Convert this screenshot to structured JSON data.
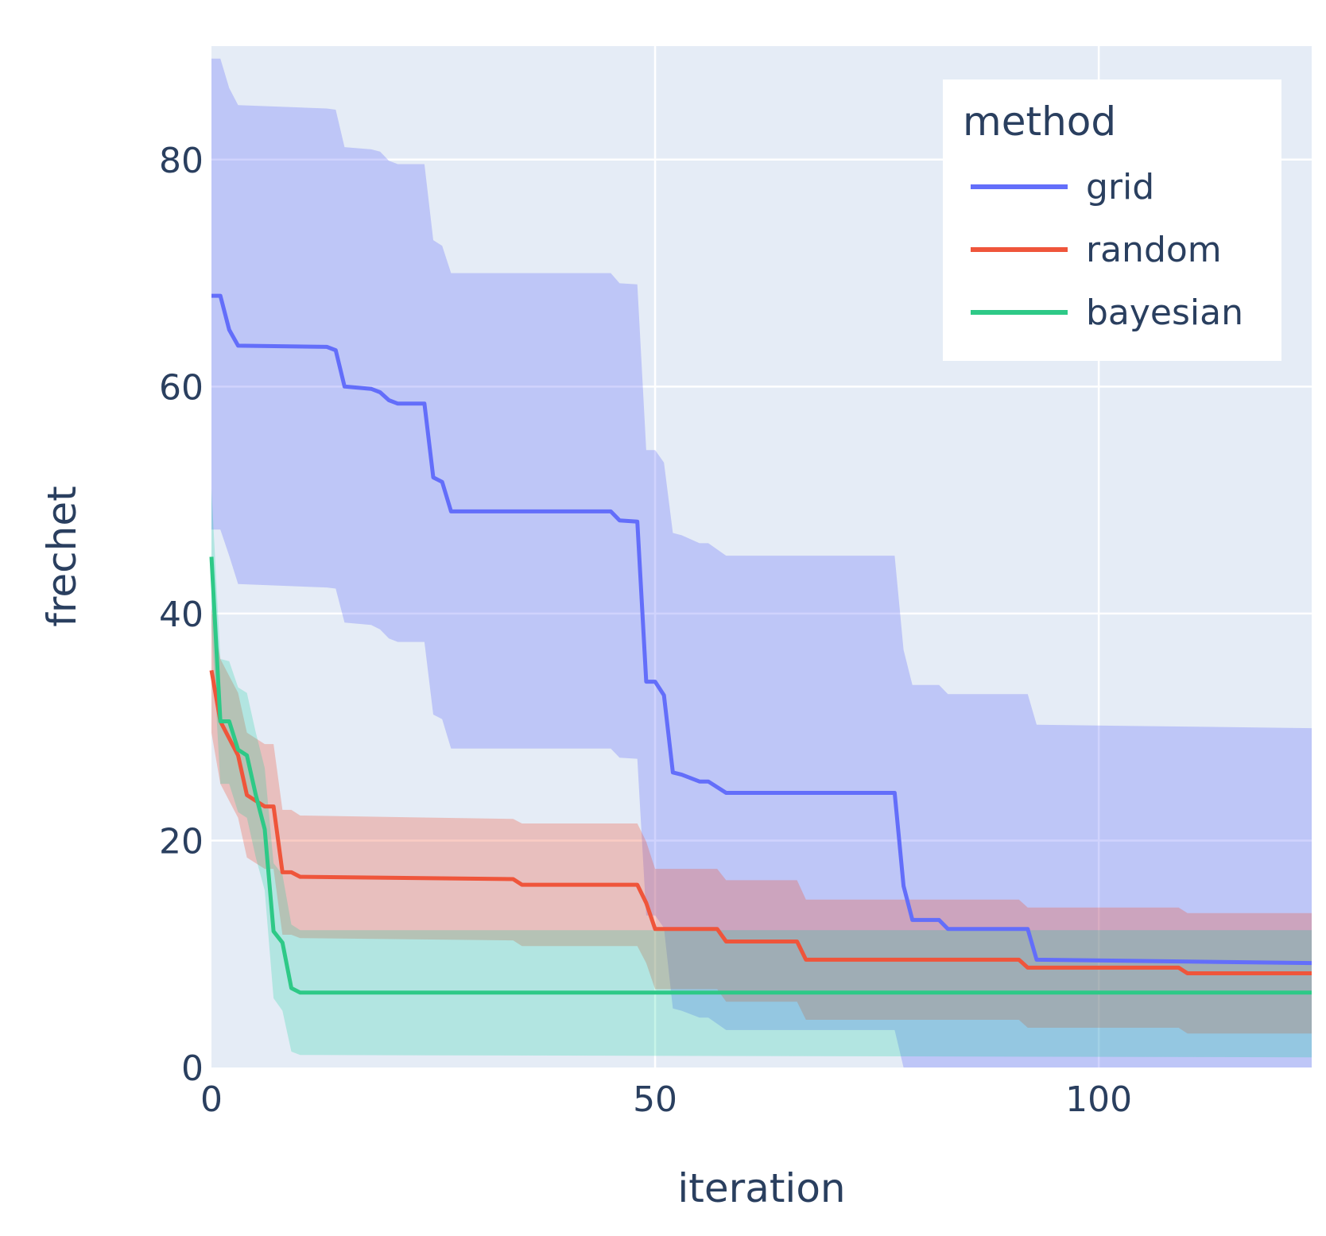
{
  "chart_data": {
    "type": "line",
    "xlabel": "iteration",
    "ylabel": "frechet",
    "xlim": [
      0,
      124
    ],
    "ylim": [
      0,
      90
    ],
    "x_ticks": [
      0,
      50,
      100
    ],
    "y_ticks": [
      0,
      20,
      40,
      60,
      80
    ],
    "grid": true,
    "plot_bg": "#e5ecf6",
    "grid_color": "#ffffff",
    "legend": {
      "title": "method",
      "position": "top-right"
    },
    "series": [
      {
        "name": "grid",
        "color": "#636efa",
        "band_fill": "rgba(99,110,250,0.3)",
        "x": [
          0,
          1,
          2,
          3,
          13,
          14,
          15,
          18,
          19,
          20,
          21,
          24,
          25,
          26,
          27,
          45,
          46,
          48,
          49,
          50,
          51,
          52,
          53,
          55,
          56,
          58,
          59,
          77,
          78,
          79,
          82,
          83,
          92,
          93,
          124
        ],
        "y": [
          68,
          68,
          65,
          63.6,
          63.5,
          63.2,
          60,
          59.8,
          59.5,
          58.8,
          58.5,
          58.5,
          52,
          51.6,
          49,
          49,
          48.2,
          48.1,
          34,
          34,
          32.8,
          26,
          25.8,
          25.2,
          25.2,
          24.2,
          24.2,
          24.2,
          16,
          13,
          13,
          12.2,
          12.2,
          9.5,
          9.2
        ],
        "upper": [
          88.9,
          88.9,
          86.3,
          84.8,
          84.5,
          84.4,
          81.1,
          80.9,
          80.7,
          79.9,
          79.6,
          79.6,
          72.9,
          72.4,
          70,
          70,
          69.1,
          69,
          54.4,
          54.4,
          53.3,
          47.1,
          46.9,
          46.2,
          46.2,
          45.1,
          45.1,
          45.1,
          36.8,
          33.7,
          33.7,
          32.9,
          32.9,
          30.2,
          29.9
        ],
        "lower": [
          47.4,
          47.4,
          45.1,
          42.6,
          42.3,
          42.2,
          39.2,
          39.0,
          38.6,
          37.8,
          37.5,
          37.5,
          31.1,
          30.7,
          28.1,
          28.1,
          27.3,
          27.2,
          13.4,
          13.4,
          12.3,
          5.2,
          5.0,
          4.4,
          4.4,
          3.3,
          3.3,
          3.3,
          0,
          0,
          0,
          0,
          0,
          0,
          0
        ]
      },
      {
        "name": "random",
        "color": "#ef553b",
        "band_fill": "rgba(239,85,59,0.3)",
        "x": [
          0,
          1,
          2,
          3,
          4,
          6,
          7,
          8,
          9,
          10,
          34,
          35,
          48,
          49,
          50,
          57,
          58,
          66,
          67,
          91,
          92,
          109,
          110,
          124
        ],
        "y": [
          35,
          30.5,
          29,
          27.5,
          24,
          23,
          23,
          17.2,
          17.2,
          16.8,
          16.6,
          16.1,
          16.1,
          14.5,
          12.2,
          12.2,
          11.1,
          11.1,
          9.5,
          9.5,
          8.8,
          8.8,
          8.3,
          8.3
        ],
        "upper": [
          40.5,
          36.0,
          34.5,
          33.0,
          29.5,
          28.5,
          28.5,
          22.7,
          22.7,
          22.2,
          21.9,
          21.5,
          21.5,
          19.9,
          17.5,
          17.5,
          16.5,
          16.5,
          14.8,
          14.8,
          14.1,
          14.1,
          13.6,
          13.6
        ],
        "lower": [
          29.5,
          25.0,
          23.5,
          22.0,
          18.5,
          17.5,
          17.5,
          11.7,
          11.7,
          11.4,
          11.2,
          10.7,
          10.7,
          9.2,
          6.9,
          6.9,
          5.8,
          5.8,
          4.2,
          4.2,
          3.5,
          3.5,
          3.0,
          3.0
        ]
      },
      {
        "name": "bayesian",
        "color": "#2ec987",
        "band_fill": "rgba(0,204,150,0.22)",
        "x": [
          0,
          1,
          2,
          3,
          4,
          5,
          6,
          7,
          8,
          9,
          10,
          11,
          124
        ],
        "y": [
          45,
          30.5,
          30.5,
          28,
          27.5,
          24,
          21,
          12,
          11,
          7,
          6.6,
          6.6,
          6.6
        ],
        "upper": [
          51,
          36.0,
          35.8,
          33.5,
          33.0,
          29.5,
          26.4,
          18.0,
          17.0,
          12.6,
          12.1,
          12.1,
          12.1
        ],
        "lower": [
          39,
          25.0,
          25.0,
          22.5,
          22.0,
          18.5,
          15.6,
          6.1,
          5.0,
          1.4,
          1.1,
          1.1,
          0.9
        ]
      }
    ]
  }
}
